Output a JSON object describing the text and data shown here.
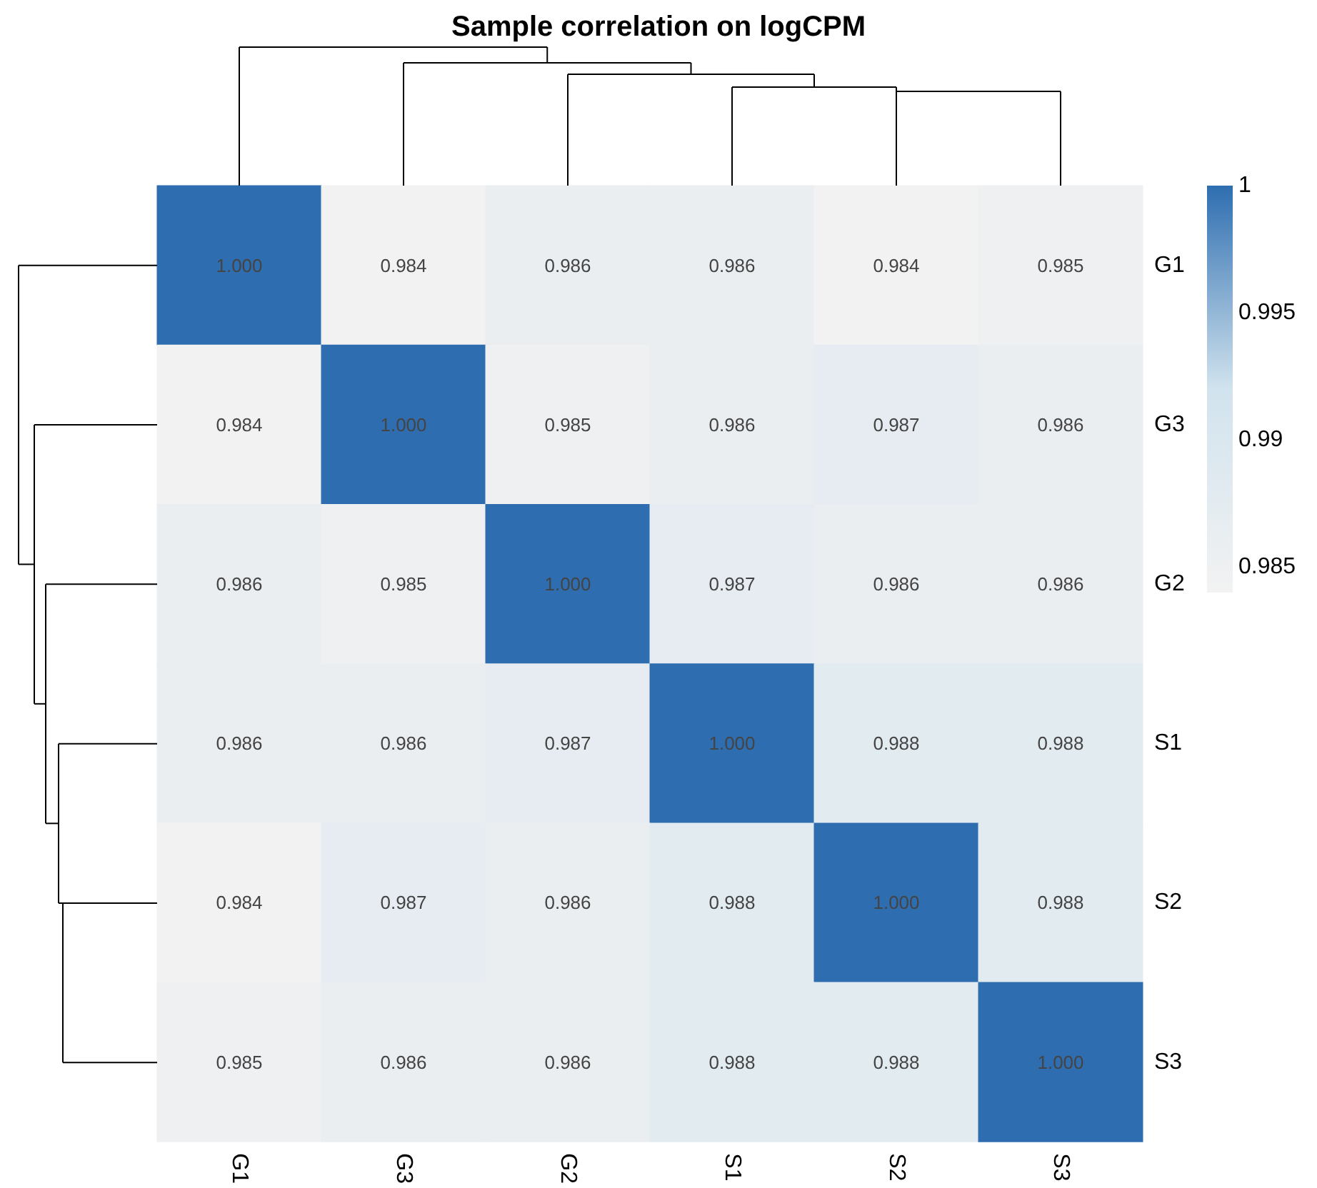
{
  "chart_data": {
    "type": "heatmap",
    "title": "Sample correlation on logCPM",
    "categories": [
      "G1",
      "G3",
      "G2",
      "S1",
      "S2",
      "S3"
    ],
    "y_categories": [
      "G1",
      "G3",
      "G2",
      "S1",
      "S2",
      "S3"
    ],
    "cells": [
      [
        1.0,
        0.984,
        0.986,
        0.986,
        0.984,
        0.985
      ],
      [
        0.984,
        1.0,
        0.985,
        0.986,
        0.987,
        0.986
      ],
      [
        0.986,
        0.985,
        1.0,
        0.987,
        0.986,
        0.986
      ],
      [
        0.986,
        0.986,
        0.987,
        1.0,
        0.988,
        0.988
      ],
      [
        0.984,
        0.987,
        0.986,
        0.988,
        1.0,
        0.988
      ],
      [
        0.985,
        0.986,
        0.986,
        0.988,
        0.988,
        1.0
      ]
    ],
    "cell_labels": [
      [
        "1.000",
        "0.984",
        "0.986",
        "0.986",
        "0.984",
        "0.985"
      ],
      [
        "0.984",
        "1.000",
        "0.985",
        "0.986",
        "0.987",
        "0.986"
      ],
      [
        "0.986",
        "0.985",
        "1.000",
        "0.987",
        "0.986",
        "0.986"
      ],
      [
        "0.986",
        "0.986",
        "0.987",
        "1.000",
        "0.988",
        "0.988"
      ],
      [
        "0.984",
        "0.987",
        "0.986",
        "0.988",
        "1.000",
        "0.988"
      ],
      [
        "0.985",
        "0.986",
        "0.986",
        "0.988",
        "0.988",
        "1.000"
      ]
    ],
    "clim": [
      0.984,
      1
    ],
    "cticks": [
      0.985,
      0.99,
      0.995,
      1
    ]
  }
}
